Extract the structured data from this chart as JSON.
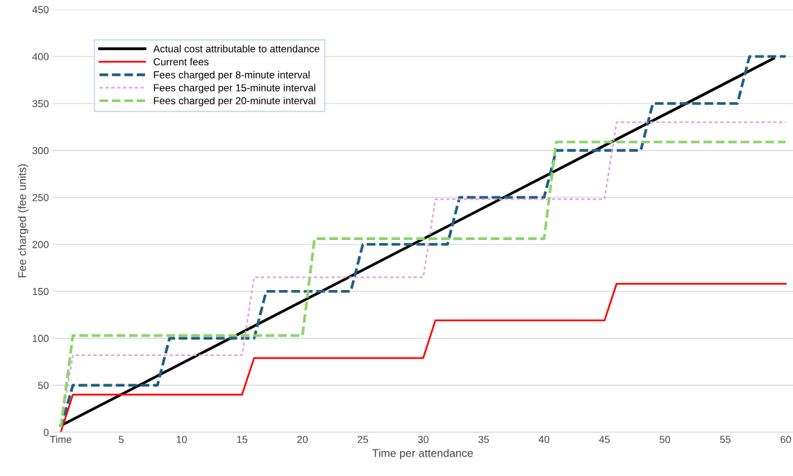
{
  "chart_data": {
    "type": "line",
    "xlabel": "Time per attendance",
    "ylabel": "Fee charged (fee units)",
    "xlim": [
      -0.7,
      60.6
    ],
    "ylim": [
      0,
      450
    ],
    "xticks": [
      {
        "value": 0,
        "label": "Time"
      },
      5,
      10,
      15,
      20,
      25,
      30,
      35,
      40,
      45,
      50,
      55,
      60
    ],
    "yticks": [
      0,
      50,
      100,
      150,
      200,
      250,
      300,
      350,
      400,
      450
    ],
    "grid": "y",
    "legend": "top left",
    "marker": "none",
    "series": [
      {
        "name": "Actual cost attributable to attendance",
        "color": "#000000",
        "line_style": "solid",
        "x": [
          0,
          59
        ],
        "values": [
          7,
          398
        ]
      },
      {
        "name": "Current fees",
        "color": "#ff0000",
        "line_style": "solid",
        "x": [
          0,
          1,
          15,
          16,
          30,
          31,
          45,
          46,
          60
        ],
        "values": [
          0,
          40,
          40,
          79,
          79,
          119,
          119,
          158,
          158
        ]
      },
      {
        "name": "Fees charged per 8-minute interval",
        "color": "#1f5f7f",
        "line_style": "dashed",
        "x": [
          0,
          1,
          8,
          9,
          16,
          17,
          24,
          25,
          32,
          33,
          40,
          41,
          48,
          49,
          56,
          57,
          60
        ],
        "values": [
          5,
          50,
          50,
          100,
          100,
          150,
          150,
          200,
          200,
          250,
          250,
          300,
          300,
          350,
          350,
          400,
          400
        ]
      },
      {
        "name": "Fees charged per 15-minute interval",
        "color": "#e8a0e0",
        "line_style": "dotted",
        "x": [
          0,
          1,
          15,
          16,
          30,
          31,
          45,
          46,
          60
        ],
        "values": [
          5,
          82,
          82,
          165,
          165,
          248,
          248,
          330,
          330
        ]
      },
      {
        "name": "Fees charged per 20-minute interval",
        "color": "#8cd46c",
        "line_style": "dashed",
        "x": [
          0,
          1,
          20,
          21,
          40,
          41,
          60
        ],
        "values": [
          5,
          103,
          103,
          206,
          206,
          309,
          309
        ]
      }
    ]
  }
}
